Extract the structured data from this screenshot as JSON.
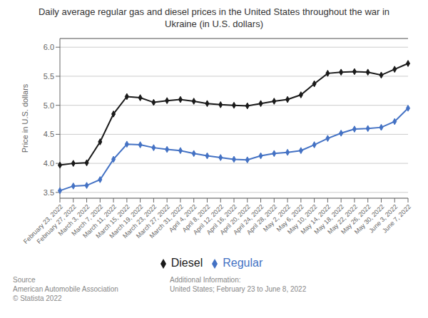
{
  "chart_data": {
    "type": "line",
    "title": "Daily average regular gas and diesel prices in the United States throughout the war in\nUkraine (in U.S. dollars)",
    "ylabel": "Price in U.S. dollars",
    "categories": [
      "February 23, 2022",
      "February 27, 2022",
      "March 3, 2022",
      "March 7, 2022",
      "March 11, 2022",
      "March 15, 2022",
      "March 19, 2022",
      "March 23, 2022",
      "March 27, 2022",
      "March 31, 2022",
      "April 4, 2022",
      "April 8, 2022",
      "April 12, 2022",
      "April 16, 2022",
      "April 20, 2022",
      "April 24, 2022",
      "April 28, 2022",
      "May 2, 2022",
      "May 6, 2022",
      "May 10, 2022",
      "May 14, 2022",
      "May 18, 2022",
      "May 22, 2022",
      "May 26, 2022",
      "May 30, 2022",
      "June 3, 2022",
      "June 7, 2022"
    ],
    "series": [
      {
        "name": "Regular",
        "color": "#4472c4",
        "marker": "diamond",
        "values": [
          3.53,
          3.61,
          3.62,
          3.72,
          4.07,
          4.33,
          4.32,
          4.27,
          4.24,
          4.22,
          4.17,
          4.13,
          4.1,
          4.07,
          4.06,
          4.13,
          4.17,
          4.19,
          4.22,
          4.32,
          4.43,
          4.52,
          4.59,
          4.6,
          4.62,
          4.72,
          4.95
        ]
      },
      {
        "name": "Diesel",
        "color": "#1a1a1a",
        "marker": "diamond",
        "values": [
          3.97,
          4.0,
          4.01,
          4.37,
          4.85,
          5.15,
          5.13,
          5.05,
          5.08,
          5.1,
          5.07,
          5.03,
          5.01,
          5.0,
          4.99,
          5.03,
          5.07,
          5.1,
          5.18,
          5.37,
          5.55,
          5.57,
          5.58,
          5.57,
          5.52,
          5.62,
          5.72
        ]
      }
    ],
    "ylim": [
      3.4,
      6.15
    ],
    "yticks": [
      3.5,
      {
        "value": 4.0,
        "label": "4.0"
      },
      4.5,
      {
        "value": 5.0,
        "label": "5.0"
      },
      5.5,
      {
        "value": 6.0,
        "label": "6.0"
      }
    ],
    "grid": "y",
    "legend": "bottom",
    "annotations": [
      "Source\nAmerican Automobile Association\n© Statista 2022",
      "Additional Information:\nUnited States; February 23 to June 8, 2022"
    ]
  }
}
